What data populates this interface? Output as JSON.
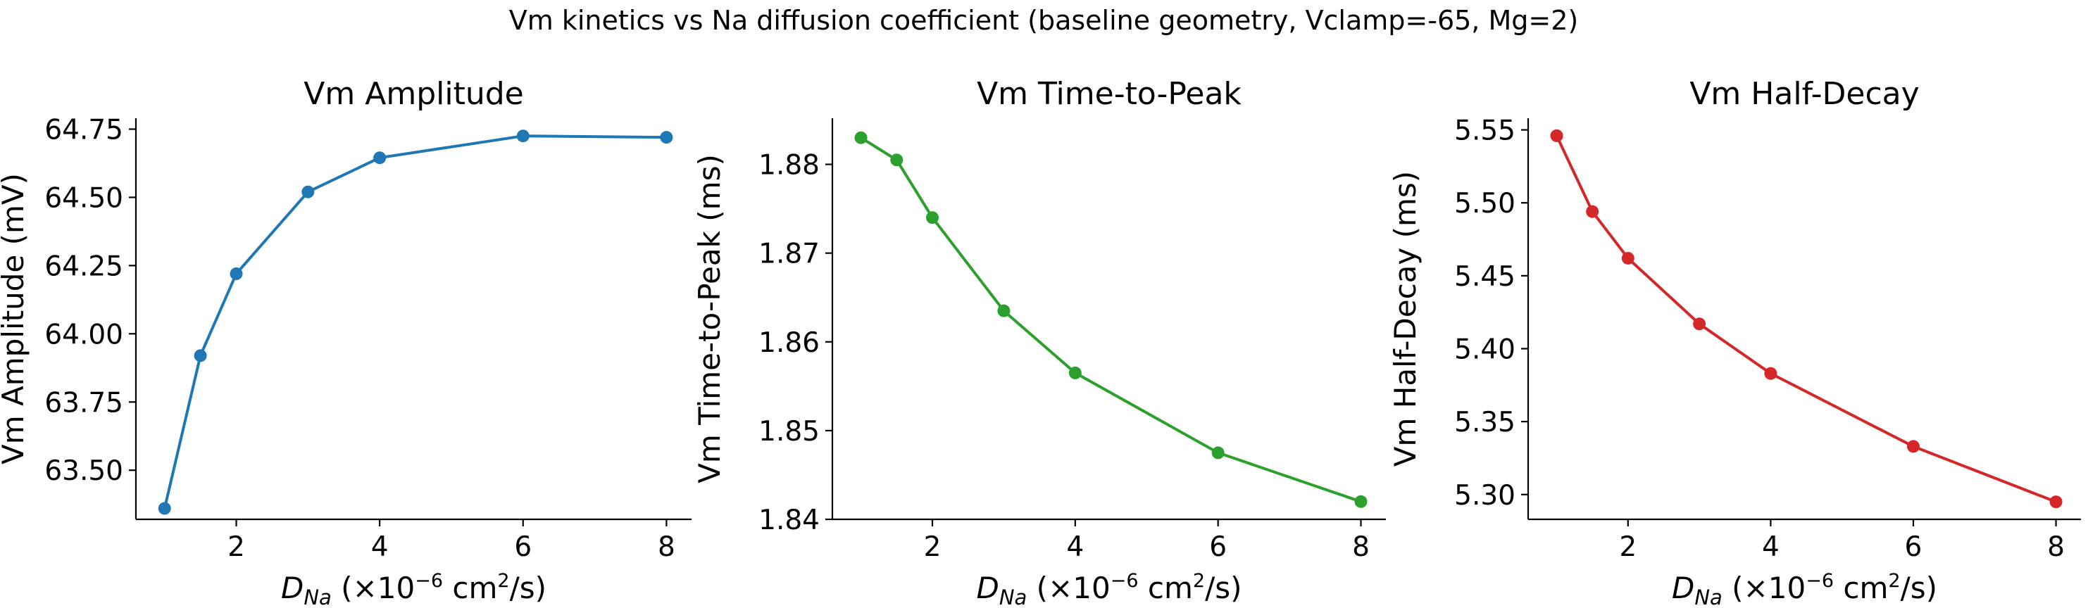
{
  "figure": {
    "suptitle": "Vm kinetics vs Na diffusion coefficient (baseline geometry, Vclamp=-65, Mg=2)"
  },
  "chart_data": [
    {
      "type": "line",
      "title": "Vm Amplitude",
      "xlabel": {
        "base": "D",
        "sub": "Na",
        "pre_sup": " (×10",
        "sup": "−6",
        "mid": " cm",
        "sup2": "2",
        "post": "/s)"
      },
      "ylabel": "Vm Amplitude (mV)",
      "color": "#1f77b4",
      "x": [
        1,
        1.5,
        2,
        3,
        4,
        6,
        8
      ],
      "values": [
        63.36,
        63.92,
        64.22,
        64.52,
        64.645,
        64.725,
        64.72
      ],
      "xlim": [
        0.6,
        8.35
      ],
      "ylim": [
        63.32,
        64.79
      ],
      "xticks": [
        2,
        4,
        6,
        8
      ],
      "xtick_labels": [
        "2",
        "4",
        "6",
        "8"
      ],
      "yticks": [
        63.5,
        63.75,
        64.0,
        64.25,
        64.5,
        64.75
      ],
      "ytick_labels": [
        "63.50",
        "63.75",
        "64.00",
        "64.25",
        "64.50",
        "64.75"
      ],
      "grid": false
    },
    {
      "type": "line",
      "title": "Vm Time-to-Peak",
      "xlabel": {
        "base": "D",
        "sub": "Na",
        "pre_sup": " (×10",
        "sup": "−6",
        "mid": " cm",
        "sup2": "2",
        "post": "/s)"
      },
      "ylabel": "Vm Time-to-Peak (ms)",
      "color": "#2ca02c",
      "x": [
        1,
        1.5,
        2,
        3,
        4,
        6,
        8
      ],
      "values": [
        1.883,
        1.8805,
        1.874,
        1.8635,
        1.8565,
        1.8475,
        1.842
      ],
      "xlim": [
        0.6,
        8.35
      ],
      "ylim": [
        1.84,
        1.8852
      ],
      "xticks": [
        2,
        4,
        6,
        8
      ],
      "xtick_labels": [
        "2",
        "4",
        "6",
        "8"
      ],
      "yticks": [
        1.84,
        1.85,
        1.86,
        1.87,
        1.88
      ],
      "ytick_labels": [
        "1.84",
        "1.85",
        "1.86",
        "1.87",
        "1.88"
      ],
      "grid": false
    },
    {
      "type": "line",
      "title": "Vm Half-Decay",
      "xlabel": {
        "base": "D",
        "sub": "Na",
        "pre_sup": " (×10",
        "sup": "−6",
        "mid": " cm",
        "sup2": "2",
        "post": "/s)"
      },
      "ylabel": "Vm Half-Decay (ms)",
      "color": "#d62728",
      "x": [
        1,
        1.5,
        2,
        3,
        4,
        6,
        8
      ],
      "values": [
        5.546,
        5.494,
        5.462,
        5.417,
        5.383,
        5.333,
        5.295
      ],
      "xlim": [
        0.6,
        8.35
      ],
      "ylim": [
        5.283,
        5.558
      ],
      "xticks": [
        2,
        4,
        6,
        8
      ],
      "xtick_labels": [
        "2",
        "4",
        "6",
        "8"
      ],
      "yticks": [
        5.3,
        5.35,
        5.4,
        5.45,
        5.5,
        5.55
      ],
      "ytick_labels": [
        "5.30",
        "5.35",
        "5.40",
        "5.45",
        "5.50",
        "5.55"
      ],
      "grid": false
    }
  ]
}
